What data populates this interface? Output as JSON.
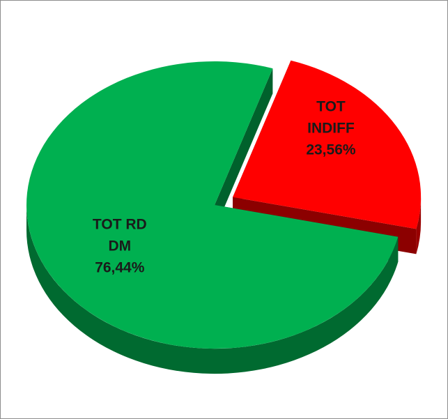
{
  "chart_data": {
    "type": "pie",
    "categories": [
      "TOT INDIFF",
      "TOT RD DM"
    ],
    "values": [
      23.56,
      76.44
    ],
    "value_labels": [
      "23,56%",
      "76,44%"
    ],
    "colors": [
      "#ff0000",
      "#00b050"
    ]
  }
}
